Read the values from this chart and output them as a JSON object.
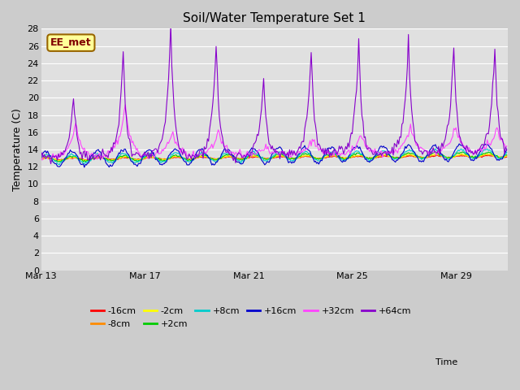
{
  "title": "Soil/Water Temperature Set 1",
  "xlabel": "Time",
  "ylabel": "Temperature (C)",
  "ylim": [
    0,
    28
  ],
  "yticks": [
    0,
    2,
    4,
    6,
    8,
    10,
    12,
    14,
    16,
    18,
    20,
    22,
    24,
    26,
    28
  ],
  "bg_color": "#cccccc",
  "plot_bg_color": "#e0e0e0",
  "grid_color": "#ffffff",
  "series": [
    {
      "label": "-16cm",
      "color": "#ff0000"
    },
    {
      "label": "-8cm",
      "color": "#ff8c00"
    },
    {
      "label": "-2cm",
      "color": "#ffff00"
    },
    {
      "label": "+2cm",
      "color": "#00cc00"
    },
    {
      "label": "+8cm",
      "color": "#00cccc"
    },
    {
      "label": "+16cm",
      "color": "#0000cc"
    },
    {
      "label": "+32cm",
      "color": "#ff44ff"
    },
    {
      "label": "+64cm",
      "color": "#8800cc"
    }
  ],
  "xtick_labels": [
    "Mar 13",
    "Mar 17",
    "Mar 21",
    "Mar 25",
    "Mar 29"
  ],
  "xtick_days": [
    0,
    4,
    8,
    12,
    16
  ],
  "annotation_text": "EE_met",
  "annotation_bg": "#ffff99",
  "annotation_border": "#996600"
}
